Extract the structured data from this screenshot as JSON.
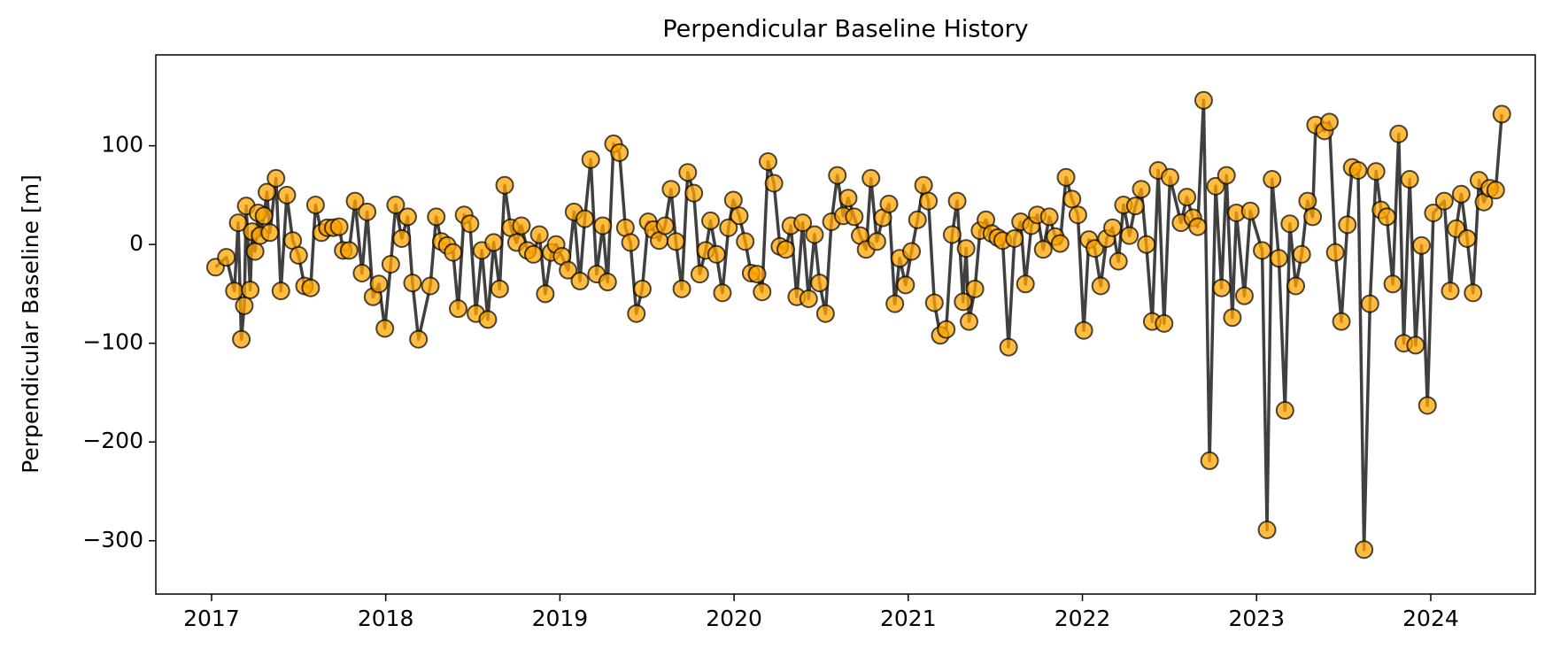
{
  "chart_data": {
    "type": "line",
    "title": "Perpendicular Baseline History",
    "y_label": "Perpendicular Baseline [m]",
    "xlim": [
      2016.68,
      2024.6
    ],
    "xticks": [
      2017,
      2018,
      2019,
      2020,
      2021,
      2022,
      2023,
      2024
    ],
    "ylim": [
      -354,
      192
    ],
    "yticks": [
      {
        "value": -300,
        "label": "−300"
      },
      {
        "value": -200,
        "label": "−200"
      },
      {
        "value": -100,
        "label": "−100"
      },
      0,
      100
    ],
    "grid": false,
    "line_color": "#404040",
    "series": [
      {
        "color": "#ffa500",
        "x": [
          2017.023,
          2017.085,
          2017.131,
          2017.153,
          2017.171,
          2017.188,
          2017.199,
          2017.222,
          2017.233,
          2017.25,
          2017.267,
          2017.279,
          2017.301,
          2017.318,
          2017.335,
          2017.37,
          2017.398,
          2017.432,
          2017.466,
          2017.5,
          2017.534,
          2017.569,
          2017.597,
          2017.631,
          2017.665,
          2017.699,
          2017.733,
          2017.756,
          2017.79,
          2017.824,
          2017.864,
          2017.893,
          2017.927,
          2017.961,
          2017.995,
          2018.029,
          2018.057,
          2018.092,
          2018.126,
          2018.154,
          2018.188,
          2018.256,
          2018.29,
          2018.319,
          2018.353,
          2018.387,
          2018.416,
          2018.45,
          2018.484,
          2018.518,
          2018.552,
          2018.586,
          2018.62,
          2018.654,
          2018.683,
          2018.717,
          2018.751,
          2018.779,
          2018.814,
          2018.848,
          2018.882,
          2018.916,
          2018.95,
          2018.978,
          2019.012,
          2019.047,
          2019.081,
          2019.115,
          2019.143,
          2019.177,
          2019.211,
          2019.246,
          2019.274,
          2019.308,
          2019.342,
          2019.376,
          2019.405,
          2019.439,
          2019.473,
          2019.507,
          2019.536,
          2019.57,
          2019.604,
          2019.638,
          2019.666,
          2019.7,
          2019.734,
          2019.769,
          2019.803,
          2019.837,
          2019.865,
          2019.899,
          2019.933,
          2019.968,
          2019.996,
          2020.03,
          2020.064,
          2020.098,
          2020.132,
          2020.161,
          2020.195,
          2020.229,
          2020.263,
          2020.297,
          2020.326,
          2020.36,
          2020.394,
          2020.428,
          2020.462,
          2020.491,
          2020.525,
          2020.559,
          2020.593,
          2020.627,
          2020.655,
          2020.69,
          2020.724,
          2020.758,
          2020.786,
          2020.82,
          2020.854,
          2020.889,
          2020.923,
          2020.951,
          2020.985,
          2021.019,
          2021.053,
          2021.088,
          2021.116,
          2021.15,
          2021.184,
          2021.218,
          2021.252,
          2021.281,
          2021.315,
          2021.332,
          2021.349,
          2021.383,
          2021.412,
          2021.446,
          2021.48,
          2021.514,
          2021.542,
          2021.576,
          2021.61,
          2021.645,
          2021.673,
          2021.707,
          2021.741,
          2021.775,
          2021.81,
          2021.844,
          2021.872,
          2021.906,
          2021.94,
          2021.974,
          2022.008,
          2022.037,
          2022.071,
          2022.105,
          2022.139,
          2022.173,
          2022.207,
          2022.236,
          2022.27,
          2022.304,
          2022.338,
          2022.367,
          2022.401,
          2022.435,
          2022.469,
          2022.503,
          2022.566,
          2022.6,
          2022.634,
          2022.662,
          2022.696,
          2022.73,
          2022.765,
          2022.799,
          2022.827,
          2022.861,
          2022.884,
          2022.93,
          2022.964,
          2023.032,
          2023.06,
          2023.089,
          2023.128,
          2023.163,
          2023.191,
          2023.225,
          2023.259,
          2023.293,
          2023.322,
          2023.339,
          2023.39,
          2023.418,
          2023.452,
          2023.487,
          2023.521,
          2023.549,
          2023.583,
          2023.617,
          2023.651,
          2023.686,
          2023.714,
          2023.748,
          2023.782,
          2023.816,
          2023.845,
          2023.879,
          2023.913,
          2023.947,
          2023.981,
          2024.015,
          2024.078,
          2024.112,
          2024.146,
          2024.175,
          2024.209,
          2024.243,
          2024.277,
          2024.305,
          2024.339,
          2024.373,
          2024.408
        ],
        "values": [
          -23,
          -13,
          -47,
          22,
          -96,
          -62,
          39,
          -46,
          13,
          -7,
          32,
          9,
          29,
          53,
          12,
          67,
          -47,
          50,
          4,
          -11,
          -42,
          -44,
          40,
          12,
          17,
          17,
          18,
          -6,
          -6,
          44,
          -29,
          33,
          -53,
          -40,
          -85,
          -20,
          40,
          6,
          28,
          -39,
          -96,
          -42,
          28,
          3,
          -1,
          -8,
          -65,
          30,
          21,
          -70,
          -6,
          -76,
          2,
          -45,
          60,
          17,
          2,
          19,
          -6,
          -10,
          10,
          -50,
          -8,
          0,
          -12,
          -26,
          33,
          -37,
          26,
          86,
          -30,
          19,
          -38,
          102,
          93,
          17,
          2,
          -70,
          -45,
          23,
          15,
          4,
          19,
          56,
          3,
          -45,
          73,
          52,
          -30,
          -6,
          24,
          -10,
          -49,
          17,
          45,
          29,
          3,
          -29,
          -30,
          -48,
          84,
          62,
          -2,
          -5,
          19,
          -53,
          22,
          -55,
          10,
          -39,
          -70,
          23,
          70,
          29,
          47,
          28,
          9,
          -5,
          67,
          3,
          27,
          41,
          -60,
          -14,
          -41,
          -7,
          25,
          60,
          44,
          -59,
          -92,
          -86,
          10,
          44,
          -58,
          -4,
          -78,
          -45,
          14,
          25,
          11,
          7,
          4,
          -104,
          6,
          23,
          -40,
          19,
          30,
          -5,
          28,
          8,
          1,
          68,
          46,
          30,
          -87,
          5,
          -4,
          -42,
          6,
          17,
          -17,
          40,
          9,
          39,
          56,
          0,
          -78,
          75,
          -80,
          68,
          22,
          48,
          27,
          18,
          146,
          -219,
          59,
          -44,
          70,
          -74,
          32,
          -52,
          34,
          -6,
          -289,
          66,
          -14,
          -168,
          21,
          -42,
          -10,
          44,
          28,
          121,
          115,
          124,
          -8,
          -78,
          20,
          78,
          75,
          -309,
          -60,
          74,
          35,
          28,
          -40,
          112,
          -100,
          66,
          -102,
          -1,
          -163,
          32,
          44,
          -47,
          16,
          51,
          6,
          -49,
          65,
          43,
          57,
          55,
          132
        ]
      }
    ]
  }
}
